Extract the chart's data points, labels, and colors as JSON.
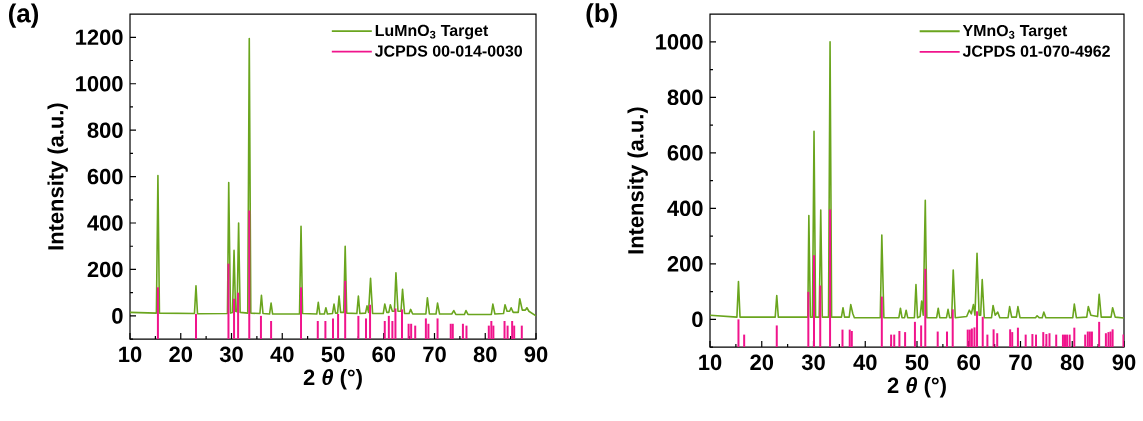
{
  "chart_data": [
    {
      "type": "line",
      "title": "(a)",
      "xlabel": "2 *θ* (°)",
      "ylabel": "Intensity (a.u.)",
      "xlim": [
        10,
        90
      ],
      "ylim": [
        -100,
        1300
      ],
      "xticks": [
        10,
        {
          "value": 15,
          "label": null
        },
        20,
        {
          "value": 25,
          "label": null
        },
        30,
        {
          "value": 35,
          "label": null
        },
        40,
        {
          "value": 45,
          "label": null
        },
        50,
        {
          "value": 55,
          "label": null
        },
        60,
        {
          "value": 65,
          "label": null
        },
        70,
        {
          "value": 75,
          "label": null
        },
        80,
        {
          "value": 85,
          "label": null
        },
        90
      ],
      "yticks": [
        {
          "value": -100,
          "label": null
        },
        0,
        {
          "value": 100,
          "label": null
        },
        200,
        {
          "value": 300,
          "label": null
        },
        400,
        {
          "value": 500,
          "label": null
        },
        600,
        {
          "value": 700,
          "label": null
        },
        800,
        {
          "value": 900,
          "label": null
        },
        1000,
        {
          "value": 1100,
          "label": null
        },
        1200
      ],
      "legend": "top right",
      "series": [
        {
          "name": "LuMnO$_{3}$ Target",
          "color": "#6aa51e",
          "x": [
            10,
            15.2,
            15.5,
            15.8,
            22.7,
            23.0,
            23.3,
            29.2,
            29.45,
            29.8,
            30.2,
            30.5,
            30.8,
            31.1,
            31.4,
            31.7,
            33.2,
            33.5,
            33.8,
            35.6,
            35.9,
            36.2,
            37.5,
            37.8,
            38.1,
            43.4,
            43.7,
            44.0,
            46.8,
            47.1,
            47.4,
            48.3,
            48.6,
            48.9,
            49.9,
            50.2,
            50.5,
            50.9,
            51.2,
            51.5,
            52.1,
            52.4,
            52.7,
            54.7,
            55.0,
            55.3,
            56.4,
            56.7,
            57.0,
            57.4,
            57.8,
            59.9,
            60.2,
            60.6,
            61.0,
            61.3,
            61.7,
            62.1,
            62.4,
            62.8,
            63.4,
            63.7,
            64.1,
            65.0,
            65.3,
            65.7,
            68.3,
            68.6,
            69.0,
            70.3,
            70.6,
            71.0,
            73.4,
            73.8,
            74.2,
            75.9,
            76.2,
            76.6,
            81.2,
            81.5,
            81.9,
            83.6,
            83.9,
            84.3,
            84.8,
            85.1,
            85.5,
            86.5,
            86.8,
            87.3,
            87.9,
            88.2,
            88.6,
            90
          ],
          "values": [
            15,
            12,
            605,
            12,
            10,
            130,
            9,
            10,
            574,
            12,
            15,
            282,
            20,
            18,
            400,
            15,
            12,
            1195,
            12,
            10,
            89,
            10,
            8,
            55,
            8,
            8,
            386,
            10,
            8,
            58,
            8,
            8,
            35,
            8,
            10,
            51,
            12,
            12,
            85,
            15,
            15,
            300,
            12,
            10,
            85,
            10,
            12,
            43,
            15,
            162,
            10,
            10,
            51,
            15,
            15,
            48,
            20,
            20,
            186,
            20,
            20,
            115,
            10,
            10,
            28,
            8,
            8,
            78,
            8,
            8,
            55,
            8,
            8,
            23,
            6,
            6,
            23,
            6,
            6,
            51,
            8,
            10,
            48,
            20,
            20,
            35,
            15,
            15,
            74,
            25,
            25,
            35,
            20,
            0
          ]
        },
        {
          "name": "JCPDS 00-014-0030",
          "type": "bar",
          "color": "#f0148c",
          "x": [
            15.5,
            23.0,
            29.4,
            30.5,
            31.3,
            33.5,
            35.8,
            37.8,
            43.7,
            47.0,
            48.5,
            50.0,
            51.0,
            52.4,
            55.0,
            56.5,
            57.3,
            60.2,
            61.0,
            61.7,
            62.3,
            63.6,
            64.9,
            65.4,
            66.2,
            68.3,
            68.8,
            70.6,
            73.2,
            73.6,
            75.6,
            76.3,
            80.7,
            81.2,
            81.6,
            83.8,
            84.4,
            85.3,
            85.7,
            87.2
          ],
          "values": [
            223,
            108,
            325,
            174,
            200,
            554,
            100,
            78,
            223,
            78,
            78,
            89,
            108,
            251,
            100,
            89,
            148,
            78,
            100,
            78,
            132,
            128,
            66,
            66,
            58,
            89,
            66,
            89,
            66,
            66,
            66,
            58,
            58,
            78,
            58,
            78,
            58,
            78,
            58,
            58
          ],
          "base": [
            -100,
            -100,
            -100,
            -100,
            -100,
            -100,
            -100,
            -100,
            -100,
            -100,
            -100,
            -100,
            -100,
            -100,
            -100,
            -100,
            -100,
            -100,
            -100,
            -100,
            -100,
            -100,
            -100,
            -100,
            -100,
            -100,
            -100,
            -100,
            -100,
            -100,
            -100,
            -100,
            -100,
            -100,
            -100,
            -100,
            -100,
            -100,
            -100,
            -100
          ]
        }
      ]
    },
    {
      "type": "line",
      "title": "(b)",
      "xlabel": "2 *θ* (°)",
      "ylabel": "Intensity (a.u.)",
      "xlim": [
        10,
        90
      ],
      "ylim": [
        -100,
        1100
      ],
      "xticks": [
        10,
        {
          "value": 15,
          "label": null
        },
        20,
        {
          "value": 25,
          "label": null
        },
        30,
        {
          "value": 35,
          "label": null
        },
        40,
        {
          "value": 45,
          "label": null
        },
        50,
        {
          "value": 55,
          "label": null
        },
        60,
        {
          "value": 65,
          "label": null
        },
        70,
        {
          "value": 75,
          "label": null
        },
        80,
        {
          "value": 85,
          "label": null
        },
        90
      ],
      "yticks": [
        {
          "value": -100,
          "label": null
        },
        0,
        {
          "value": 100,
          "label": null
        },
        200,
        {
          "value": 300,
          "label": null
        },
        400,
        {
          "value": 500,
          "label": null
        },
        600,
        {
          "value": 700,
          "label": null
        },
        800,
        {
          "value": 900,
          "label": null
        },
        1000
      ],
      "legend": "top right",
      "series": [
        {
          "name": "YMnO$_{3}$ Target",
          "color": "#6aa51e",
          "x": [
            10,
            15.2,
            15.5,
            15.8,
            22.6,
            22.9,
            23.2,
            28.9,
            29.1,
            29.4,
            29.8,
            30.1,
            30.4,
            31.1,
            31.4,
            31.7,
            32.9,
            33.2,
            33.5,
            35.4,
            35.7,
            36.0,
            36.9,
            37.2,
            37.6,
            37.9,
            42.9,
            43.2,
            43.6,
            46.5,
            46.8,
            47.1,
            47.6,
            47.9,
            48.2,
            49.5,
            49.8,
            50.1,
            50.6,
            50.9,
            51.2,
            51.6,
            51.9,
            53.8,
            54.1,
            54.4,
            55.7,
            56.0,
            56.3,
            56.7,
            57.0,
            57.4,
            59.6,
            60.1,
            60.5,
            60.9,
            61.2,
            61.6,
            62.0,
            62.3,
            62.6,
            63.0,
            64.4,
            64.7,
            65.1,
            65.6,
            66.0,
            67.6,
            67.9,
            68.3,
            69.2,
            69.5,
            69.9,
            72.9,
            73.2,
            73.6,
            74.2,
            74.5,
            74.9,
            80.1,
            80.4,
            80.8,
            82.8,
            83.1,
            83.6,
            84.9,
            85.2,
            85.6,
            87.5,
            87.8,
            88.3,
            90
          ],
          "values": [
            15,
            8,
            136,
            8,
            8,
            86,
            8,
            8,
            374,
            8,
            8,
            678,
            8,
            8,
            394,
            8,
            8,
            1000,
            8,
            8,
            42,
            8,
            8,
            53,
            20,
            6,
            6,
            304,
            6,
            6,
            40,
            6,
            6,
            33,
            6,
            6,
            125,
            6,
            10,
            66,
            15,
            429,
            6,
            6,
            40,
            6,
            6,
            36,
            6,
            6,
            178,
            6,
            10,
            33,
            20,
            53,
            15,
            238,
            15,
            15,
            143,
            6,
            6,
            50,
            15,
            26,
            6,
            6,
            46,
            8,
            8,
            46,
            6,
            6,
            13,
            6,
            6,
            26,
            6,
            6,
            55,
            6,
            8,
            46,
            15,
            10,
            90,
            8,
            8,
            42,
            8,
            5
          ]
        },
        {
          "name": "JCPDS 01-070-4962",
          "type": "bar",
          "color": "#f0148c",
          "x": [
            15.5,
            16.6,
            22.9,
            29.0,
            30.1,
            31.3,
            33.2,
            35.6,
            37.0,
            37.4,
            43.2,
            45.0,
            45.6,
            46.6,
            47.7,
            49.6,
            50.8,
            51.6,
            54.0,
            55.8,
            56.9,
            59.8,
            60.2,
            60.6,
            61.1,
            61.6,
            62.7,
            63.6,
            64.8,
            65.5,
            68.0,
            68.4,
            69.5,
            71.0,
            72.3,
            73.0,
            74.4,
            75.0,
            75.6,
            76.9,
            78.2,
            78.6,
            79.0,
            79.5,
            80.4,
            82.5,
            83.0,
            83.4,
            83.8,
            85.2,
            86.5,
            87.0,
            87.4,
            87.8,
            89.9
          ],
          "values": [
            100,
            45,
            78,
            199,
            331,
            222,
            496,
            63,
            63,
            58,
            182,
            45,
            45,
            58,
            54,
            91,
            78,
            282,
            56,
            56,
            136,
            63,
            63,
            67,
            71,
            129,
            109,
            45,
            64,
            50,
            64,
            54,
            70,
            45,
            47,
            45,
            54,
            47,
            50,
            45,
            45,
            45,
            45,
            45,
            70,
            45,
            56,
            56,
            56,
            91,
            50,
            54,
            56,
            64,
            45
          ],
          "base": [
            -100,
            -100,
            -100,
            -100,
            -100,
            -100,
            -100,
            -100,
            -100,
            -100,
            -100,
            -100,
            -100,
            -100,
            -100,
            -100,
            -100,
            -100,
            -100,
            -100,
            -100,
            -100,
            -100,
            -100,
            -100,
            -100,
            -100,
            -100,
            -100,
            -100,
            -100,
            -100,
            -100,
            -100,
            -100,
            -100,
            -100,
            -100,
            -100,
            -100,
            -100,
            -100,
            -100,
            -100,
            -100,
            -100,
            -100,
            -100,
            -100,
            -100,
            -100,
            -100,
            -100,
            -100,
            -100
          ]
        }
      ]
    }
  ]
}
